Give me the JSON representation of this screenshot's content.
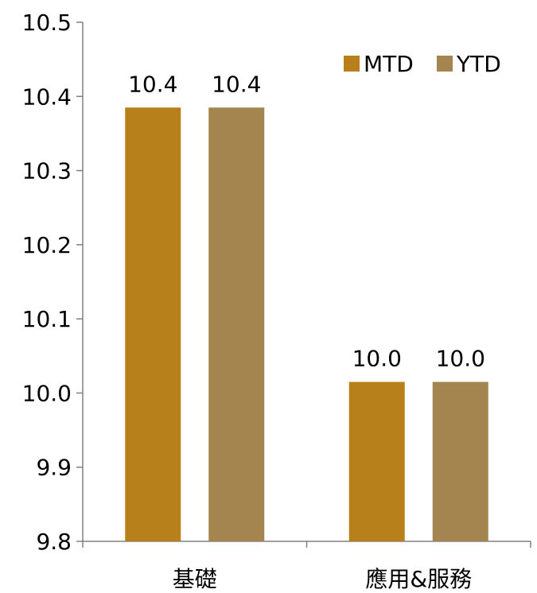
{
  "chart_data": {
    "type": "bar",
    "title": "",
    "xlabel": "",
    "ylabel": "",
    "categories": [
      "基礎",
      "應用&服務"
    ],
    "series": [
      {
        "name": "MTD",
        "values": [
          10.385,
          10.015
        ],
        "labels": [
          "10.4",
          "10.0"
        ],
        "color": "#B8801A"
      },
      {
        "name": "YTD",
        "values": [
          10.385,
          10.015
        ],
        "labels": [
          "10.4",
          "10.0"
        ],
        "color": "#A5854F"
      }
    ],
    "ylim": [
      9.8,
      10.5
    ],
    "yticks": [
      "9.8",
      "9.9",
      "10.0",
      "10.1",
      "10.2",
      "10.3",
      "10.4",
      "10.5"
    ],
    "grid": false,
    "legend": "top-right"
  }
}
